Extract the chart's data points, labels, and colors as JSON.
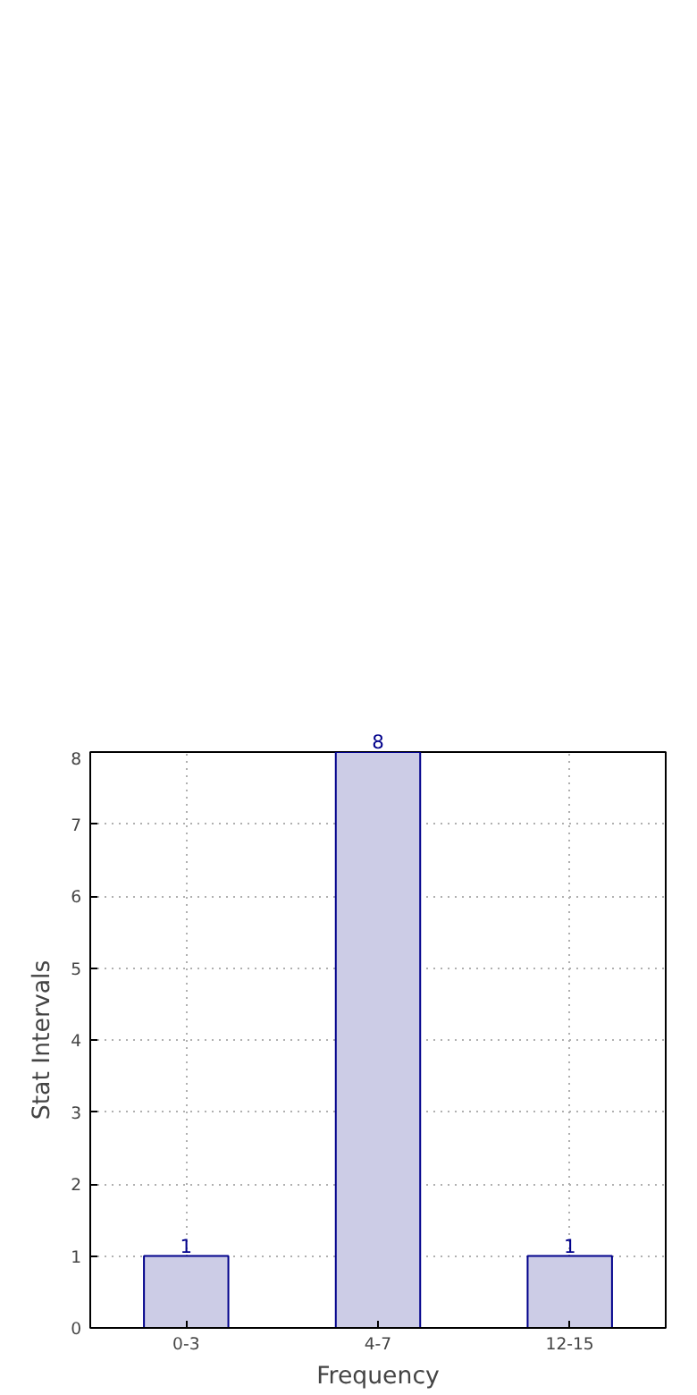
{
  "chart_data": {
    "type": "bar",
    "xlabel": "Frequency",
    "ylabel": "Stat Intervals",
    "categories": [
      "0-3",
      "4-7",
      "12-15"
    ],
    "values": [
      1,
      8,
      1
    ],
    "color": "#ccccE6",
    "ylim": [
      0,
      8
    ],
    "yticks": [
      0,
      1,
      2,
      3,
      4,
      5,
      6,
      7,
      8
    ],
    "grid": true,
    "data_labels": true
  }
}
